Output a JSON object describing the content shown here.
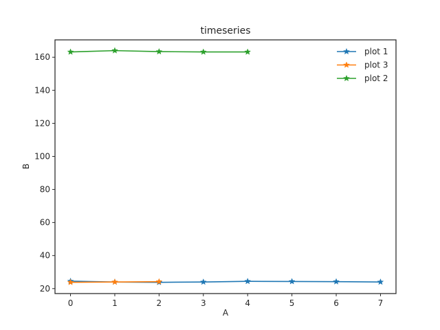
{
  "chart_data": {
    "type": "line",
    "title": "timeseries",
    "xlabel": "A",
    "ylabel": "B",
    "xlim": [
      -0.35,
      7.35
    ],
    "ylim": [
      17,
      170.5
    ],
    "xticks": [
      0,
      1,
      2,
      3,
      4,
      5,
      6,
      7
    ],
    "yticks": [
      20,
      40,
      60,
      80,
      100,
      120,
      140,
      160
    ],
    "grid": false,
    "legend_position": "top-right",
    "marker": "star",
    "series": [
      {
        "name": "plot 1",
        "color": "#1f77b4",
        "x": [
          0,
          1,
          2,
          3,
          4,
          5,
          6,
          7
        ],
        "y": [
          24.5,
          24.0,
          23.8,
          24.0,
          24.4,
          24.3,
          24.2,
          24.0
        ]
      },
      {
        "name": "plot 3",
        "color": "#ff7f0e",
        "x": [
          0,
          1,
          2
        ],
        "y": [
          23.8,
          24.0,
          24.2
        ]
      },
      {
        "name": "plot 2",
        "color": "#2ca02c",
        "x": [
          0,
          1,
          2,
          3,
          4
        ],
        "y": [
          163.2,
          164.0,
          163.4,
          163.2,
          163.2
        ]
      }
    ]
  }
}
